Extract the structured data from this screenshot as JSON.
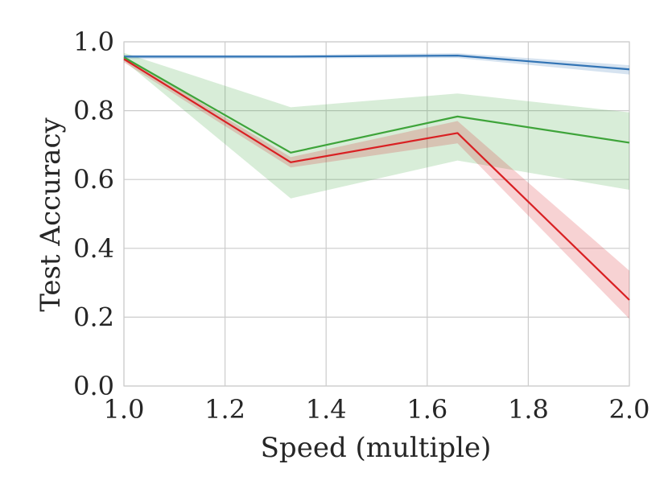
{
  "chart_data": {
    "type": "line",
    "title": "",
    "xlabel": "Speed (multiple)",
    "ylabel": "Test Accuracy",
    "xlim": [
      1.0,
      2.0
    ],
    "ylim": [
      0.0,
      1.0
    ],
    "grid": true,
    "x": [
      1.0,
      1.33,
      1.66,
      2.0
    ],
    "x_ticks": [
      "1.0",
      "1.2",
      "1.4",
      "1.6",
      "1.8",
      "2.0"
    ],
    "y_ticks": [
      "0.0",
      "0.2",
      "0.4",
      "0.6",
      "0.8",
      "1.0"
    ],
    "series": [
      {
        "name": "blue",
        "color": "#3274b5",
        "values": [
          0.957,
          0.957,
          0.96,
          0.92
        ],
        "lower": [
          0.95,
          0.952,
          0.953,
          0.905
        ],
        "upper": [
          0.962,
          0.962,
          0.967,
          0.932
        ]
      },
      {
        "name": "green",
        "color": "#3ea43a",
        "values": [
          0.955,
          0.678,
          0.783,
          0.707
        ],
        "lower": [
          0.945,
          0.545,
          0.655,
          0.57
        ],
        "upper": [
          0.968,
          0.81,
          0.85,
          0.795
        ]
      },
      {
        "name": "red",
        "color": "#d92023",
        "values": [
          0.95,
          0.65,
          0.735,
          0.25
        ],
        "lower": [
          0.94,
          0.635,
          0.705,
          0.195
        ],
        "upper": [
          0.958,
          0.665,
          0.77,
          0.335
        ]
      }
    ]
  }
}
